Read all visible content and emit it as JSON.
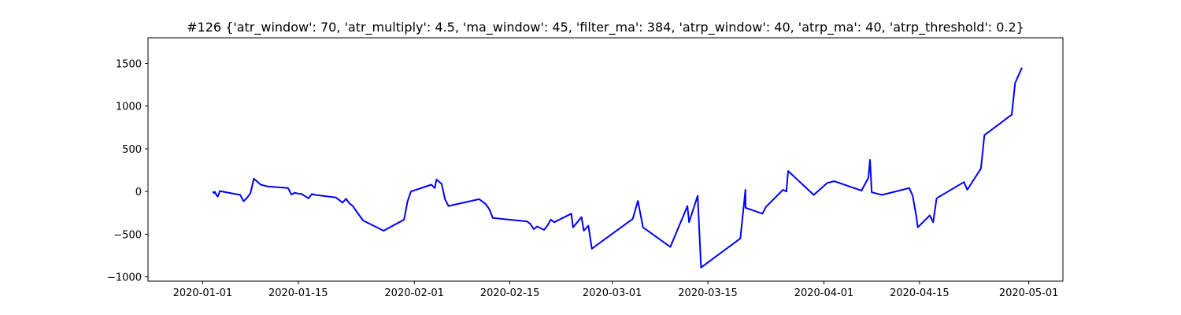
{
  "chart_data": {
    "type": "line",
    "title": "#126 {'atr_window': 70, 'atr_multiply': 4.5, 'ma_window': 45, 'filter_ma': 384, 'atrp_window': 40, 'atrp_ma': 40, 'atrp_threshold': 0.2}",
    "xlabel": "",
    "ylabel": "",
    "x_type": "date",
    "xlim": [
      "2019-12-24",
      "2020-05-06"
    ],
    "ylim": [
      -1050,
      1800
    ],
    "grid": false,
    "legend": "none",
    "x_ticks": [
      {
        "date": "2020-01-01",
        "label": "2020-01-01"
      },
      {
        "date": "2020-01-15",
        "label": "2020-01-15"
      },
      {
        "date": "2020-02-01",
        "label": "2020-02-01"
      },
      {
        "date": "2020-02-15",
        "label": "2020-02-15"
      },
      {
        "date": "2020-03-01",
        "label": "2020-03-01"
      },
      {
        "date": "2020-03-15",
        "label": "2020-03-15"
      },
      {
        "date": "2020-04-01",
        "label": "2020-04-01"
      },
      {
        "date": "2020-04-15",
        "label": "2020-04-15"
      },
      {
        "date": "2020-05-01",
        "label": "2020-05-01"
      }
    ],
    "y_ticks": [
      {
        "value": -1000,
        "label": "−1000"
      },
      {
        "value": -500,
        "label": "−500"
      },
      {
        "value": 0,
        "label": "0"
      },
      {
        "value": 500,
        "label": "500"
      },
      {
        "value": 1000,
        "label": "1000"
      },
      {
        "value": 1500,
        "label": "1500"
      }
    ],
    "series": [
      {
        "color": "#0000ff",
        "x": [
          "2020-01-02 12:00",
          "2020-01-02 16:00",
          "2020-01-02 19:00",
          "2020-01-03 02:00",
          "2020-01-03 05:00",
          "2020-01-03 09:00",
          "2020-01-03 12:00",
          "2020-01-06 12:00",
          "2020-01-07 00:00",
          "2020-01-07 12:00",
          "2020-01-08 00:00",
          "2020-01-08 12:00",
          "2020-01-09 12:00",
          "2020-01-10 12:00",
          "2020-01-13 12:00",
          "2020-01-14 00:00",
          "2020-01-14 12:00",
          "2020-01-15 00:00",
          "2020-01-15 12:00",
          "2020-01-16 12:00",
          "2020-01-17 00:00",
          "2020-01-17 12:00",
          "2020-01-20 12:00",
          "2020-01-21 12:00",
          "2020-01-22 00:00",
          "2020-01-22 12:00",
          "2020-01-23 00:00",
          "2020-01-23 12:00",
          "2020-01-24 12:00",
          "2020-01-27 12:00",
          "2020-01-30 12:00",
          "2020-01-31 00:00",
          "2020-01-31 12:00",
          "2020-02-03 12:00",
          "2020-02-04 00:00",
          "2020-02-04 06:00",
          "2020-02-05 00:00",
          "2020-02-05 12:00",
          "2020-02-06 00:00",
          "2020-02-10 12:00",
          "2020-02-11 12:00",
          "2020-02-12 00:00",
          "2020-02-12 12:00",
          "2020-02-17 12:00",
          "2020-02-18 00:00",
          "2020-02-18 12:00",
          "2020-02-19 00:00",
          "2020-02-20 00:00",
          "2020-02-20 12:00",
          "2020-02-21 00:00",
          "2020-02-21 12:00",
          "2020-02-24 00:00",
          "2020-02-24 06:00",
          "2020-02-25 12:00",
          "2020-02-25 20:00",
          "2020-02-26 12:00",
          "2020-02-27 00:00",
          "2020-03-04 00:00",
          "2020-03-04 18:00",
          "2020-03-05 12:00",
          "2020-03-09 12:00",
          "2020-03-12 00:00",
          "2020-03-12 06:00",
          "2020-03-13 12:00",
          "2020-03-14 00:00",
          "2020-03-19 18:00",
          "2020-03-20 12:00",
          "2020-03-20 12:30",
          "2020-03-23 00:00",
          "2020-03-23 12:00",
          "2020-03-26 00:00",
          "2020-03-26 12:00",
          "2020-03-26 18:00",
          "2020-03-30 12:00",
          "2020-04-01 12:00",
          "2020-04-02 12:00",
          "2020-04-06 12:00",
          "2020-04-07 12:00",
          "2020-04-07 18:00",
          "2020-04-08 00:00",
          "2020-04-09 12:00",
          "2020-04-13 12:00",
          "2020-04-14 00:00",
          "2020-04-14 12:00",
          "2020-04-14 18:00",
          "2020-04-16 12:00",
          "2020-04-17 00:00",
          "2020-04-17 12:00",
          "2020-04-21 12:00",
          "2020-04-22 00:00",
          "2020-04-24 00:00",
          "2020-04-24 12:00",
          "2020-04-28 12:00",
          "2020-04-29 00:00",
          "2020-04-30 00:00"
        ],
        "y": [
          0,
          -20,
          -5,
          -50,
          -60,
          -30,
          5,
          -40,
          -115,
          -75,
          -20,
          150,
          80,
          60,
          40,
          -35,
          -15,
          -25,
          -30,
          -80,
          -30,
          -40,
          -70,
          -130,
          -85,
          -140,
          -170,
          -230,
          -340,
          -460,
          -330,
          -120,
          0,
          80,
          40,
          140,
          90,
          -90,
          -170,
          -90,
          -150,
          -210,
          -310,
          -350,
          -380,
          -440,
          -410,
          -450,
          -400,
          -330,
          -360,
          -260,
          -420,
          -300,
          -460,
          -400,
          -670,
          -320,
          -110,
          -420,
          -650,
          -170,
          -360,
          -50,
          -890,
          -550,
          20,
          -190,
          -260,
          -180,
          20,
          0,
          240,
          -40,
          100,
          120,
          10,
          160,
          370,
          -10,
          -40,
          40,
          -50,
          -280,
          -420,
          -280,
          -360,
          -80,
          110,
          20,
          270,
          660,
          900,
          1270,
          1450
        ]
      }
    ]
  }
}
